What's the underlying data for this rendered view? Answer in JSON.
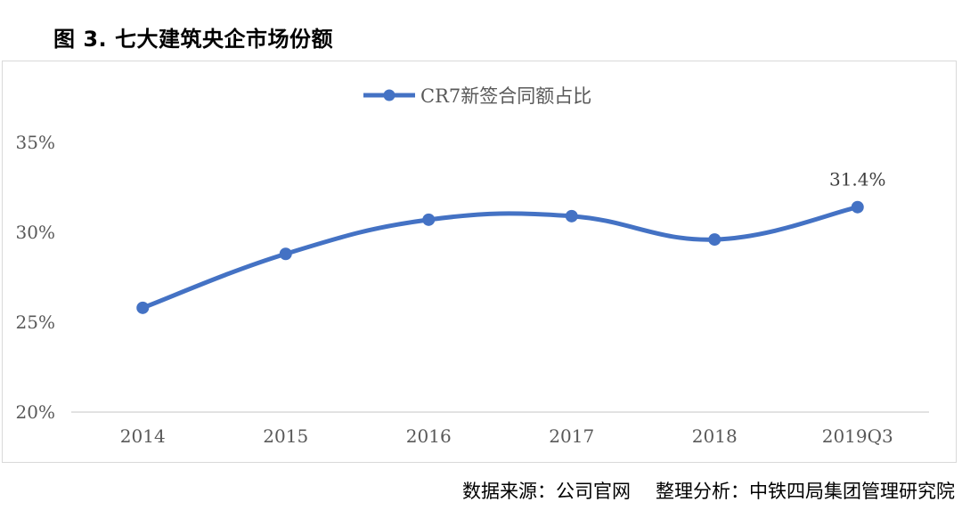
{
  "figure": {
    "title": "图 3. 七大建筑央企市场份额",
    "source": "数据来源：公司官网",
    "analysis": "整理分析：中铁四局集团管理研究院"
  },
  "chart_data": {
    "type": "line",
    "title": "",
    "xlabel": "",
    "ylabel": "",
    "categories": [
      "2014",
      "2015",
      "2016",
      "2017",
      "2018",
      "2019Q3"
    ],
    "series": [
      {
        "name": "CR7新签合同额占比",
        "values": [
          25.8,
          28.8,
          30.7,
          30.9,
          29.6,
          31.4
        ],
        "color": "#4472C4",
        "smooth": true
      }
    ],
    "y_ticks": [
      "20%",
      "25%",
      "30%",
      "35%"
    ],
    "ylim": [
      20,
      35
    ],
    "data_labels": [
      {
        "index": 5,
        "text": "31.4%"
      }
    ],
    "legend": "top-center",
    "grid": false
  }
}
